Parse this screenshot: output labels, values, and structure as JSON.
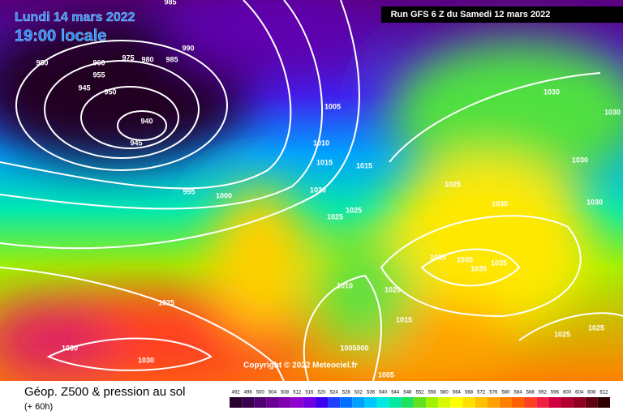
{
  "header": {
    "date": "Lundi 14 mars 2022",
    "time": "19:00 locale",
    "run": "Run GFS 6 Z du Samedi 12 mars 2022"
  },
  "copyright": "Copyright © 2022 Meteociel.fr",
  "legend": {
    "title": "Géop. Z500 & pression au sol",
    "subtitle": "(+ 60h)",
    "values": [
      492,
      496,
      500,
      504,
      508,
      512,
      516,
      520,
      524,
      528,
      532,
      536,
      540,
      544,
      548,
      552,
      556,
      560,
      564,
      568,
      572,
      576,
      580,
      584,
      588,
      592,
      596,
      600,
      604,
      608,
      612
    ],
    "colors": [
      "#2a0030",
      "#3a0050",
      "#500070",
      "#6a0090",
      "#8000b0",
      "#9000d0",
      "#7000e0",
      "#4000f0",
      "#2040ff",
      "#0070ff",
      "#00a0ff",
      "#00c8ff",
      "#00e8e0",
      "#00e8a0",
      "#20e060",
      "#60e020",
      "#a0f000",
      "#d8f800",
      "#ffff00",
      "#ffe000",
      "#ffc000",
      "#ffa000",
      "#ff8000",
      "#ff6000",
      "#ff4020",
      "#f02040",
      "#d00040",
      "#b00030",
      "#900020",
      "#600010",
      "#300000"
    ]
  },
  "isobar_labels": [
    985,
    950,
    960,
    975,
    980,
    985,
    990,
    955,
    945,
    950,
    940,
    945,
    995,
    1000,
    1005,
    1010,
    1015,
    1015,
    1020,
    1025,
    1025,
    1025,
    1030,
    1030,
    1030,
    1030,
    1030,
    1035,
    1035,
    1035,
    1035,
    1010,
    1020,
    1015,
    1025,
    1030,
    1030,
    1025,
    1025,
    "1005000",
    1005
  ]
}
